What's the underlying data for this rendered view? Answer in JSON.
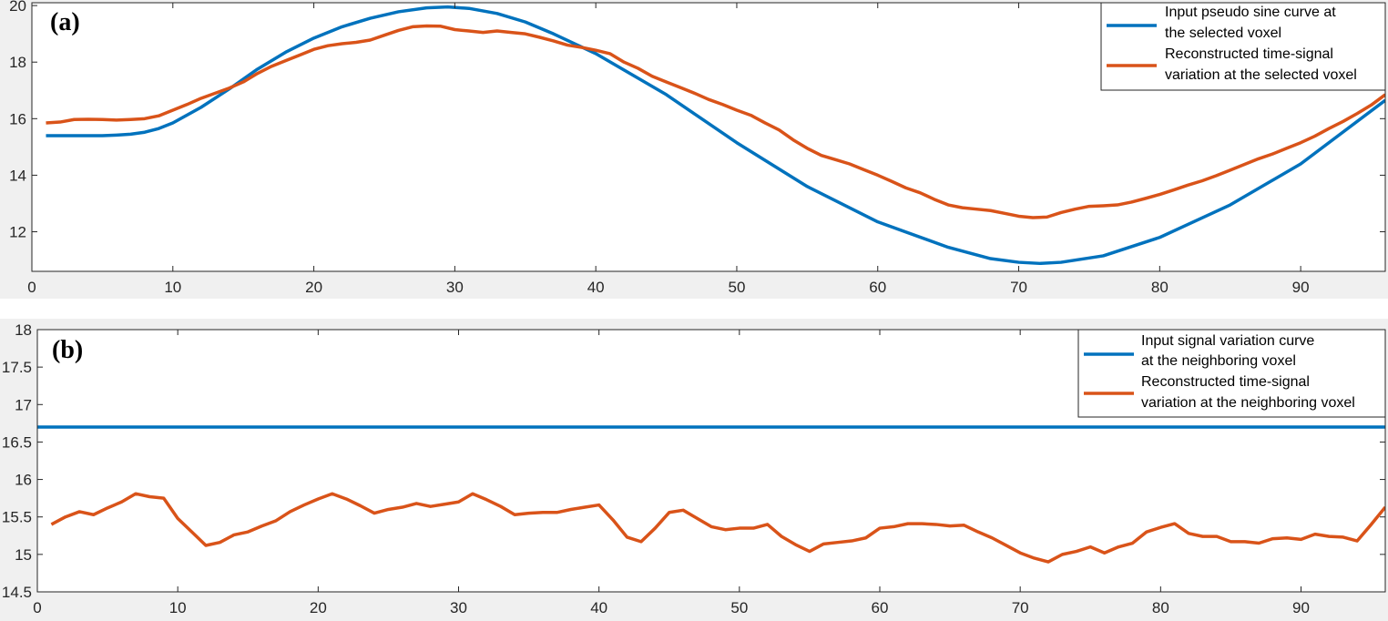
{
  "chart_data": [
    {
      "type": "line",
      "panel_label": "(a)",
      "xlim": [
        0,
        96
      ],
      "ylim": [
        10.6,
        20.1
      ],
      "xticks": [
        0,
        10,
        20,
        30,
        40,
        50,
        60,
        70,
        80,
        90
      ],
      "yticks": [
        12,
        14,
        16,
        18,
        20
      ],
      "legend_placement": "top-right",
      "grid": false,
      "series": [
        {
          "name": "Input pseudo sine curve at the selected voxel",
          "color": "#0072BD",
          "x": [
            1,
            2,
            3,
            4,
            5,
            6,
            7,
            8,
            9,
            10,
            12,
            14,
            16,
            18,
            20,
            22,
            24,
            26,
            28,
            29.5,
            31,
            33,
            35,
            37,
            40,
            45,
            50,
            55,
            60,
            65,
            68,
            70,
            71.5,
            73,
            76,
            80,
            85,
            90,
            96
          ],
          "values": [
            15.4,
            15.4,
            15.4,
            15.4,
            15.4,
            15.42,
            15.45,
            15.52,
            15.65,
            15.85,
            16.4,
            17.05,
            17.75,
            18.35,
            18.85,
            19.25,
            19.55,
            19.78,
            19.92,
            19.95,
            19.9,
            19.72,
            19.42,
            19.0,
            18.3,
            16.85,
            15.15,
            13.6,
            12.35,
            11.45,
            11.05,
            10.92,
            10.88,
            10.92,
            11.15,
            11.8,
            12.95,
            14.4,
            16.65
          ]
        },
        {
          "name": "Reconstructed time-signal variation at the selected voxel",
          "color": "#D95319",
          "x": [
            1,
            2,
            3,
            4,
            5,
            6,
            7,
            8,
            9,
            10,
            11,
            12,
            13,
            14,
            15,
            16,
            17,
            18,
            19,
            20,
            21,
            22,
            23,
            24,
            25,
            26,
            27,
            28,
            29,
            30,
            31,
            32,
            33,
            34,
            35,
            36,
            37,
            38,
            39,
            40,
            41,
            42,
            43,
            44,
            45,
            46,
            47,
            48,
            49,
            50,
            51,
            52,
            53,
            54,
            55,
            56,
            57,
            58,
            59,
            60,
            61,
            62,
            63,
            64,
            65,
            66,
            67,
            68,
            69,
            70,
            71,
            72,
            73,
            74,
            75,
            76,
            77,
            78,
            79,
            80,
            81,
            82,
            83,
            84,
            85,
            86,
            87,
            88,
            89,
            90,
            91,
            92,
            93,
            94,
            95,
            96
          ],
          "values": [
            15.85,
            15.88,
            15.97,
            15.98,
            15.97,
            15.95,
            15.97,
            16.0,
            16.1,
            16.3,
            16.5,
            16.72,
            16.9,
            17.08,
            17.3,
            17.6,
            17.85,
            18.05,
            18.25,
            18.45,
            18.58,
            18.65,
            18.7,
            18.78,
            18.95,
            19.12,
            19.25,
            19.28,
            19.27,
            19.15,
            19.1,
            19.05,
            19.1,
            19.05,
            19.0,
            18.88,
            18.75,
            18.6,
            18.52,
            18.42,
            18.3,
            18.0,
            17.78,
            17.5,
            17.3,
            17.1,
            16.9,
            16.68,
            16.5,
            16.3,
            16.12,
            15.85,
            15.6,
            15.25,
            14.95,
            14.7,
            14.55,
            14.4,
            14.2,
            14.0,
            13.78,
            13.55,
            13.38,
            13.15,
            12.95,
            12.85,
            12.8,
            12.75,
            12.65,
            12.55,
            12.5,
            12.52,
            12.68,
            12.8,
            12.9,
            12.92,
            12.95,
            13.05,
            13.18,
            13.32,
            13.48,
            13.65,
            13.8,
            13.98,
            14.18,
            14.38,
            14.58,
            14.75,
            14.95,
            15.15,
            15.38,
            15.65,
            15.9,
            16.18,
            16.48,
            16.85
          ]
        }
      ]
    },
    {
      "type": "line",
      "panel_label": "(b)",
      "xlim": [
        0,
        96
      ],
      "ylim": [
        14.5,
        18
      ],
      "xticks": [
        0,
        10,
        20,
        30,
        40,
        50,
        60,
        70,
        80,
        90
      ],
      "yticks": [
        14.5,
        15,
        15.5,
        16,
        16.5,
        17,
        17.5,
        18
      ],
      "legend_placement": "top-right",
      "grid": false,
      "series": [
        {
          "name": "Input signal variation curve at the neighboring voxel",
          "color": "#0072BD",
          "x": [
            0,
            96
          ],
          "values": [
            16.7,
            16.7
          ]
        },
        {
          "name": "Reconstructed time-signal variation at the neighboring voxel",
          "color": "#D95319",
          "x": [
            1,
            2,
            3,
            4,
            5,
            6,
            7,
            8,
            9,
            10,
            11,
            12,
            13,
            14,
            15,
            16,
            17,
            18,
            19,
            20,
            21,
            22,
            23,
            24,
            25,
            26,
            27,
            28,
            29,
            30,
            31,
            32,
            33,
            34,
            35,
            36,
            37,
            38,
            39,
            40,
            41,
            42,
            43,
            44,
            45,
            46,
            47,
            48,
            49,
            50,
            51,
            52,
            53,
            54,
            55,
            56,
            57,
            58,
            59,
            60,
            61,
            62,
            63,
            64,
            65,
            66,
            67,
            68,
            69,
            70,
            71,
            72,
            73,
            74,
            75,
            76,
            77,
            78,
            79,
            80,
            81,
            82,
            83,
            84,
            85,
            86,
            87,
            88,
            89,
            90,
            91,
            92,
            93,
            94,
            95,
            96
          ],
          "values": [
            15.4,
            15.5,
            15.57,
            15.53,
            15.62,
            15.7,
            15.81,
            15.77,
            15.75,
            15.48,
            15.3,
            15.12,
            15.16,
            15.26,
            15.3,
            15.38,
            15.45,
            15.57,
            15.66,
            15.74,
            15.81,
            15.74,
            15.65,
            15.55,
            15.6,
            15.63,
            15.68,
            15.64,
            15.67,
            15.7,
            15.81,
            15.73,
            15.64,
            15.53,
            15.55,
            15.56,
            15.56,
            15.6,
            15.63,
            15.66,
            15.46,
            15.23,
            15.17,
            15.35,
            15.56,
            15.59,
            15.48,
            15.37,
            15.33,
            15.35,
            15.35,
            15.4,
            15.24,
            15.13,
            15.04,
            15.14,
            15.16,
            15.18,
            15.22,
            15.35,
            15.37,
            15.41,
            15.41,
            15.4,
            15.38,
            15.39,
            15.3,
            15.22,
            15.12,
            15.02,
            14.95,
            14.9,
            15.0,
            15.04,
            15.1,
            15.02,
            15.1,
            15.15,
            15.3,
            15.36,
            15.41,
            15.28,
            15.24,
            15.24,
            15.17,
            15.17,
            15.15,
            15.21,
            15.22,
            15.2,
            15.27,
            15.24,
            15.23,
            15.18,
            15.4,
            15.63
          ]
        }
      ]
    }
  ]
}
